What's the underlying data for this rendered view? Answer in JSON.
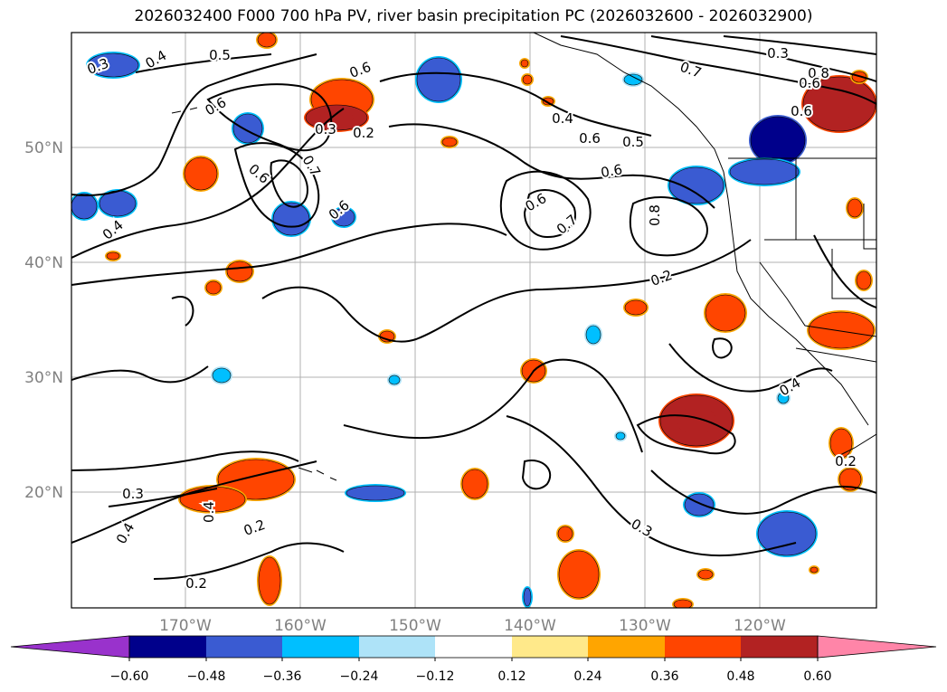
{
  "title": "2026032400 F000 700 hPa PV, river basin precipitation PC (2026032600 - 2026032900)",
  "map": {
    "lat_labels": [
      "50°N",
      "40°N",
      "30°N",
      "20°N"
    ],
    "lon_labels": [
      "170°W",
      "160°W",
      "150°W",
      "140°W",
      "130°W",
      "120°W"
    ],
    "contour_labels": [
      "0.3",
      "0.4",
      "0.5",
      "0.6",
      "0.6",
      "0.3",
      "0.2",
      "0.6",
      "0.7",
      "0.6",
      "0.6",
      "0.4",
      "0.5",
      "0.6",
      "0.6",
      "0.7",
      "0.8",
      "0.7",
      "0.3",
      "0.8",
      "0.6",
      "0.6",
      "0.2",
      "0.4",
      "0.4",
      "0.3",
      "0.4",
      "0.2",
      "0.2",
      "0.3",
      "0.4",
      "0.2"
    ]
  },
  "colorbar": {
    "ticks": [
      "−0.60",
      "−0.48",
      "−0.36",
      "−0.24",
      "−0.12",
      "0.12",
      "0.24",
      "0.36",
      "0.48",
      "0.60"
    ],
    "colors": [
      "#9932cc",
      "#00008b",
      "#3a5bd2",
      "#00bfff",
      "#aee3f8",
      "#ffffff",
      "#ffe98a",
      "#ffa500",
      "#ff4500",
      "#b22222",
      "#ff85a8"
    ]
  },
  "colors": {
    "neg_strong": "#00008b",
    "neg_mid": "#3a5bd2",
    "neg_light": "#00bfff",
    "pos_light": "#ffa500",
    "pos_mid": "#ff4500",
    "pos_strong": "#b22222"
  }
}
